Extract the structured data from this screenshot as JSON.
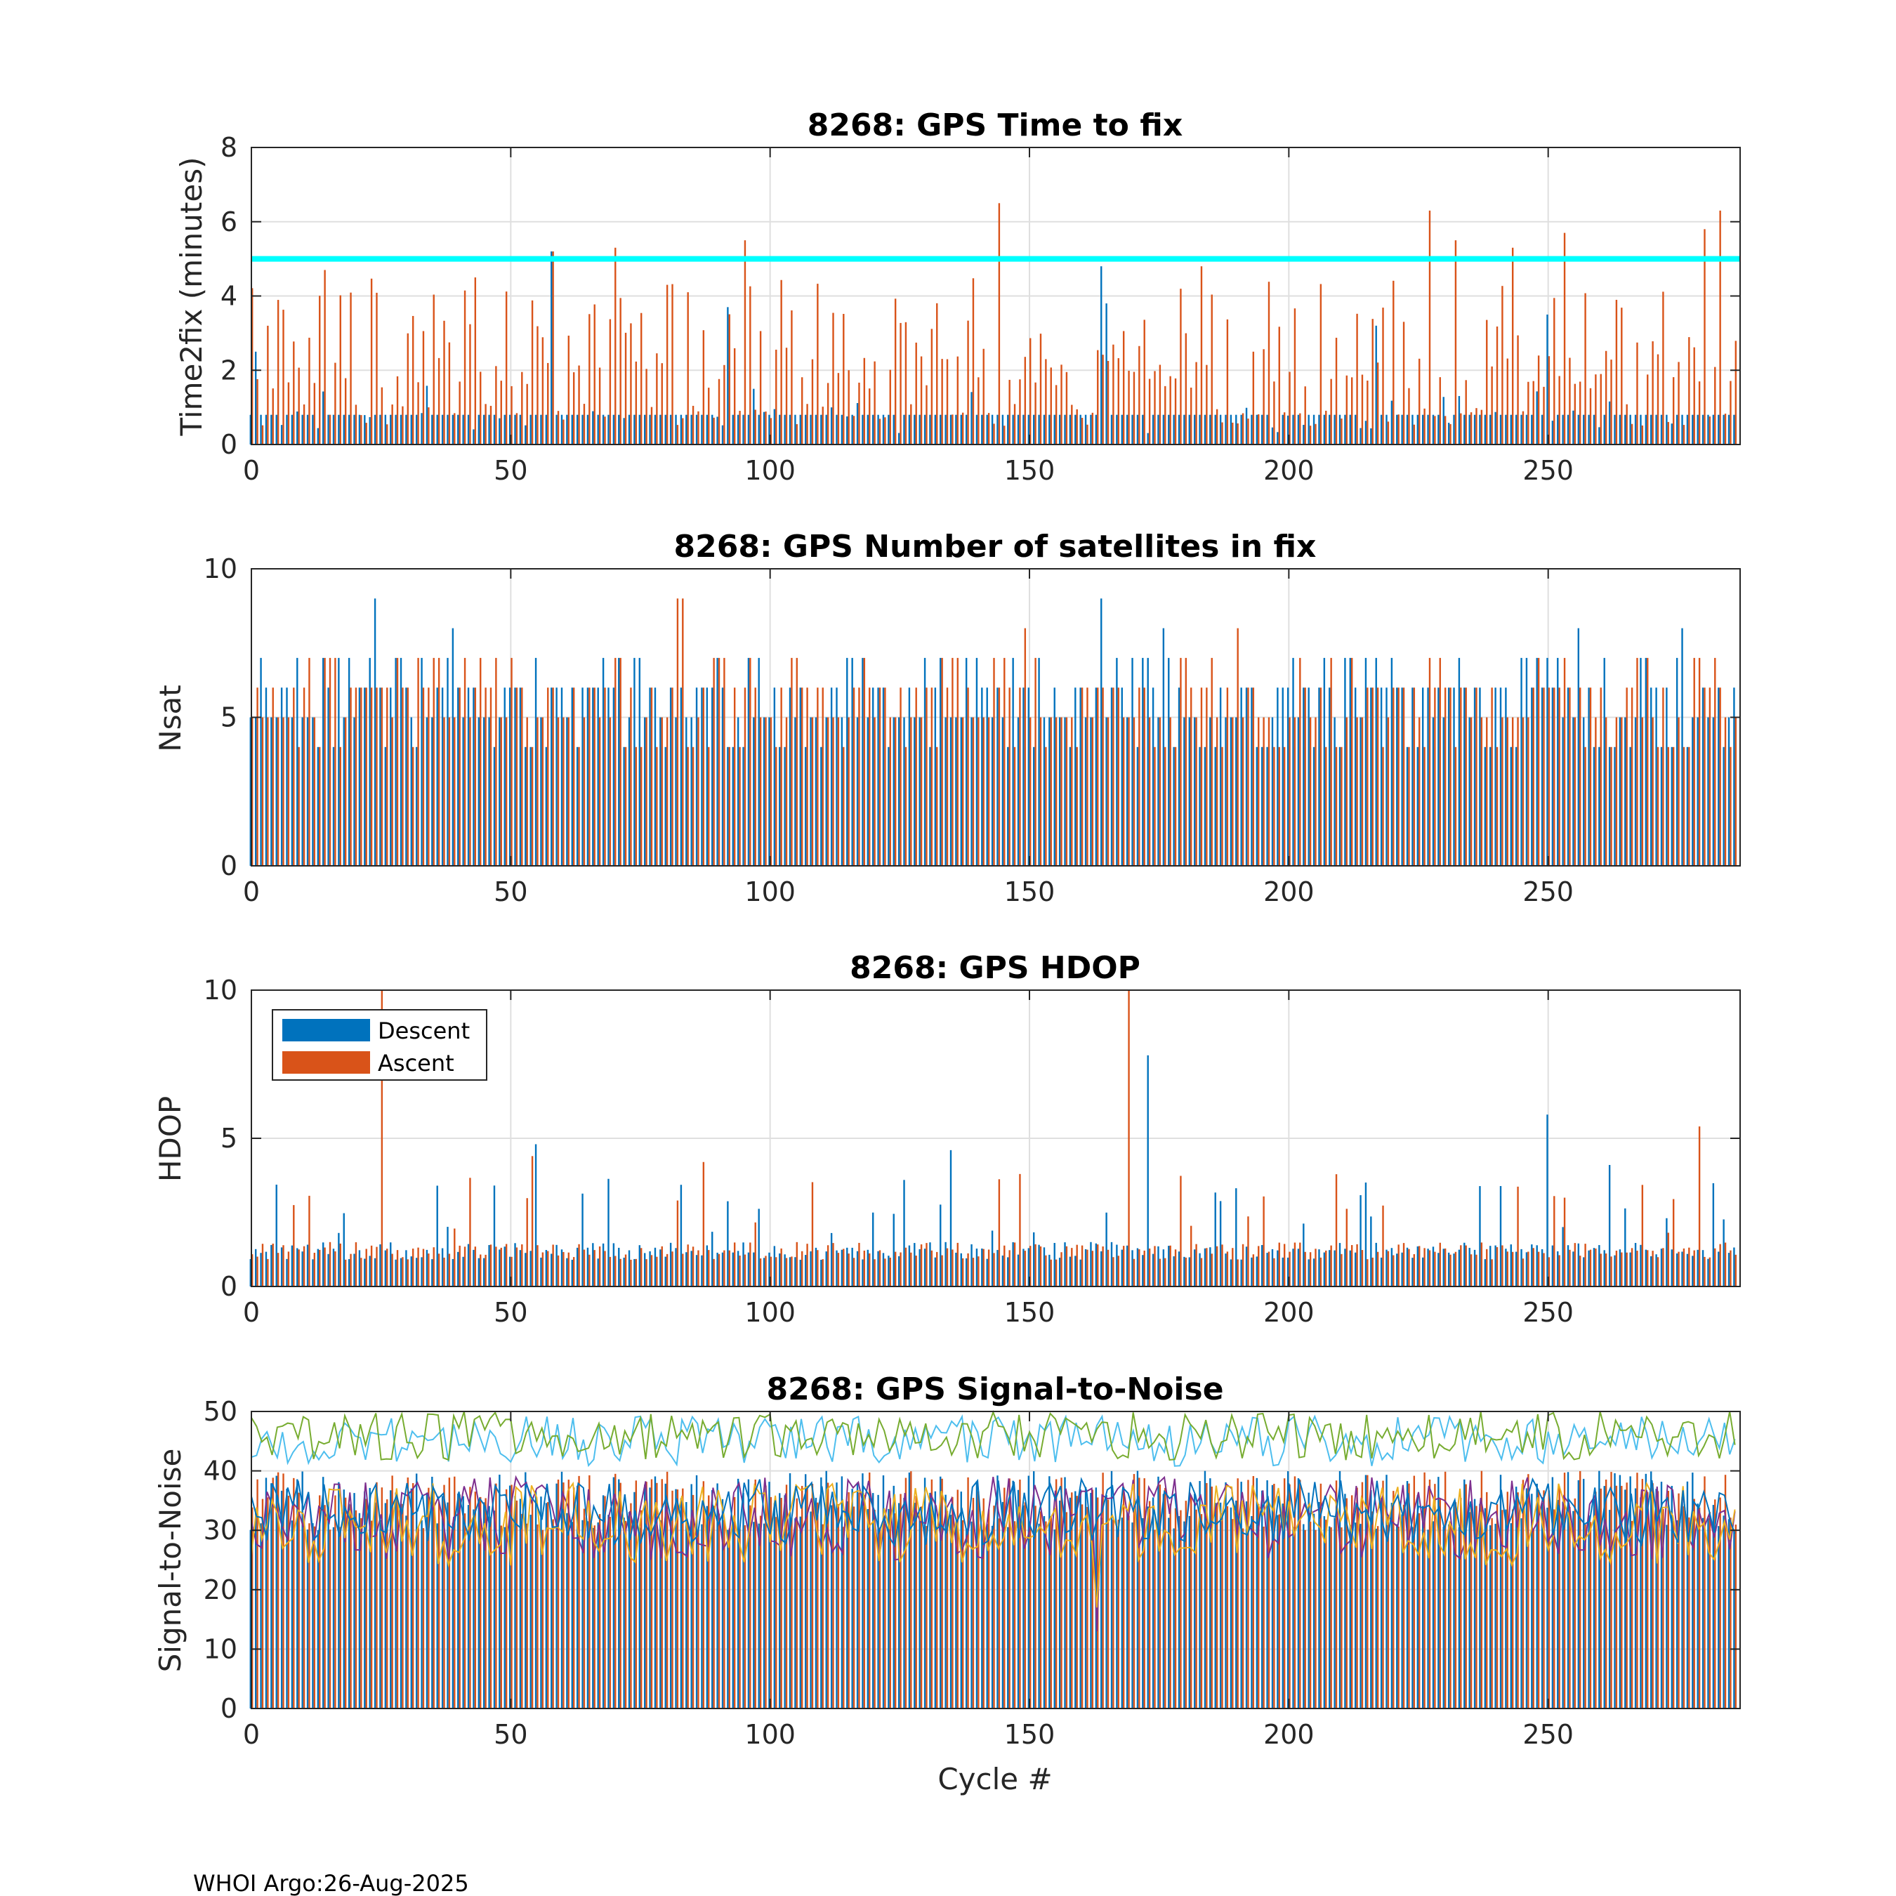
{
  "footer": "WHOI Argo:26-Aug-2025",
  "colors": {
    "descent": "#0072BD",
    "ascent": "#D95319",
    "threshold": "#00FFFF",
    "snr_lines": [
      "#4DBEEE",
      "#77AC30",
      "#7E2F8E",
      "#EDB120",
      "#0072BD"
    ]
  },
  "legend": {
    "descent": "Descent",
    "ascent": "Ascent"
  },
  "chart_data": [
    {
      "type": "bar",
      "title": "8268: GPS Time to fix",
      "xlabel": "",
      "ylabel": "Time2fix (minutes)",
      "xlim": [
        0,
        287
      ],
      "ylim": [
        0,
        8
      ],
      "xticks": [
        "0",
        "50",
        "100",
        "150",
        "200",
        "250"
      ],
      "yticks": [
        "0",
        "2",
        "4",
        "6",
        "8"
      ],
      "threshold": 5,
      "series": [
        {
          "name": "Descent",
          "baseline": 0.8,
          "spikes": [
            [
              1,
              2.5
            ],
            [
              58,
              5.2
            ],
            [
              92,
              3.7
            ],
            [
              164,
              4.8
            ],
            [
              217,
              3.2
            ],
            [
              250,
              3.5
            ],
            [
              165,
              3.8
            ]
          ]
        },
        {
          "name": "Ascent",
          "typical_range": [
            1.5,
            4.5
          ],
          "spikes": [
            [
              14,
              4.7
            ],
            [
              43,
              4.5
            ],
            [
              58,
              5.2
            ],
            [
              70,
              5.3
            ],
            [
              95,
              5.5
            ],
            [
              144,
              6.5
            ],
            [
              183,
              4.8
            ],
            [
              227,
              6.3
            ],
            [
              232,
              5.5
            ],
            [
              243,
              5.3
            ],
            [
              253,
              5.7
            ],
            [
              280,
              5.8
            ],
            [
              283,
              6.3
            ]
          ]
        }
      ]
    },
    {
      "type": "bar",
      "title": "8268: GPS Number of satellites in fix",
      "xlabel": "",
      "ylabel": "Nsat",
      "xlim": [
        0,
        287
      ],
      "ylim": [
        0,
        10
      ],
      "xticks": [
        "0",
        "50",
        "100",
        "150",
        "200",
        "250"
      ],
      "yticks": [
        "0",
        "5",
        "10"
      ],
      "series": [
        {
          "name": "Descent",
          "typical_range": [
            4,
            7
          ],
          "spikes": [
            [
              24,
              9
            ],
            [
              39,
              8
            ],
            [
              164,
              9
            ],
            [
              176,
              8
            ],
            [
              256,
              8
            ],
            [
              276,
              8
            ]
          ]
        },
        {
          "name": "Ascent",
          "typical_range": [
            4,
            7
          ],
          "spikes": [
            [
              82,
              9
            ],
            [
              83,
              9
            ],
            [
              149,
              8
            ],
            [
              190,
              8
            ]
          ]
        }
      ]
    },
    {
      "type": "bar",
      "title": "8268: GPS HDOP",
      "xlabel": "",
      "ylabel": "HDOP",
      "xlim": [
        0,
        287
      ],
      "ylim": [
        0,
        10
      ],
      "xticks": [
        "0",
        "50",
        "100",
        "150",
        "200",
        "250"
      ],
      "yticks": [
        "0",
        "5",
        "10"
      ],
      "legend_position": "top-left",
      "series": [
        {
          "name": "Descent",
          "baseline": 1.2,
          "spikes": [
            [
              55,
              4.8
            ],
            [
              135,
              4.6
            ],
            [
              173,
              7.8
            ],
            [
              250,
              5.8
            ],
            [
              262,
              4.1
            ]
          ]
        },
        {
          "name": "Ascent",
          "baseline": 1.2,
          "spikes": [
            [
              25,
              10
            ],
            [
              54,
              4.4
            ],
            [
              169,
              10
            ],
            [
              279,
              5.4
            ],
            [
              87,
              4.2
            ]
          ]
        }
      ]
    },
    {
      "type": "bar",
      "title": "8268: GPS Signal-to-Noise",
      "xlabel": "Cycle #",
      "ylabel": "Signal-to-Noise",
      "xlim": [
        0,
        287
      ],
      "ylim": [
        0,
        50
      ],
      "xticks": [
        "0",
        "50",
        "100",
        "150",
        "200",
        "250"
      ],
      "yticks": [
        "0",
        "10",
        "20",
        "30",
        "40",
        "50"
      ],
      "series": [
        {
          "name": "Descent",
          "typical_range": [
            30,
            40
          ]
        },
        {
          "name": "Ascent",
          "typical_range": [
            30,
            40
          ]
        }
      ],
      "lines": [
        {
          "name": "line-light-blue",
          "mean": 45,
          "spread": 3
        },
        {
          "name": "line-green",
          "mean": 46,
          "spread": 3
        },
        {
          "name": "line-purple",
          "mean": 32,
          "spread": 5,
          "min": 13
        },
        {
          "name": "line-yellow",
          "mean": 31,
          "spread": 5,
          "min": 17
        },
        {
          "name": "line-blue",
          "mean": 33,
          "spread": 4
        }
      ]
    }
  ]
}
